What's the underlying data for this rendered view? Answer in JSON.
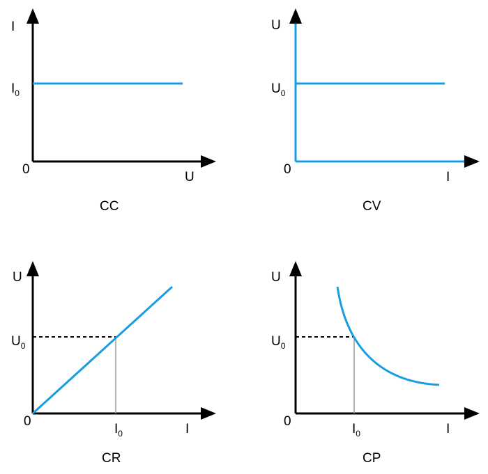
{
  "panels": [
    {
      "title": "CC",
      "y_axis": "I",
      "x_axis": "U",
      "origin": "0",
      "y_marker": {
        "main": "I",
        "sub": "0"
      }
    },
    {
      "title": "CV",
      "y_axis": "U",
      "x_axis": "I",
      "origin": "0",
      "y_marker": {
        "main": "U",
        "sub": "0"
      }
    },
    {
      "title": "CR",
      "y_axis": "U",
      "x_axis": "I",
      "origin": "0",
      "y_marker": {
        "main": "U",
        "sub": "0"
      },
      "x_marker": {
        "main": "I",
        "sub": "0"
      }
    },
    {
      "title": "CP",
      "y_axis": "U",
      "x_axis": "I",
      "origin": "0",
      "y_marker": {
        "main": "U",
        "sub": "0"
      },
      "x_marker": {
        "main": "I",
        "sub": "0"
      }
    }
  ]
}
